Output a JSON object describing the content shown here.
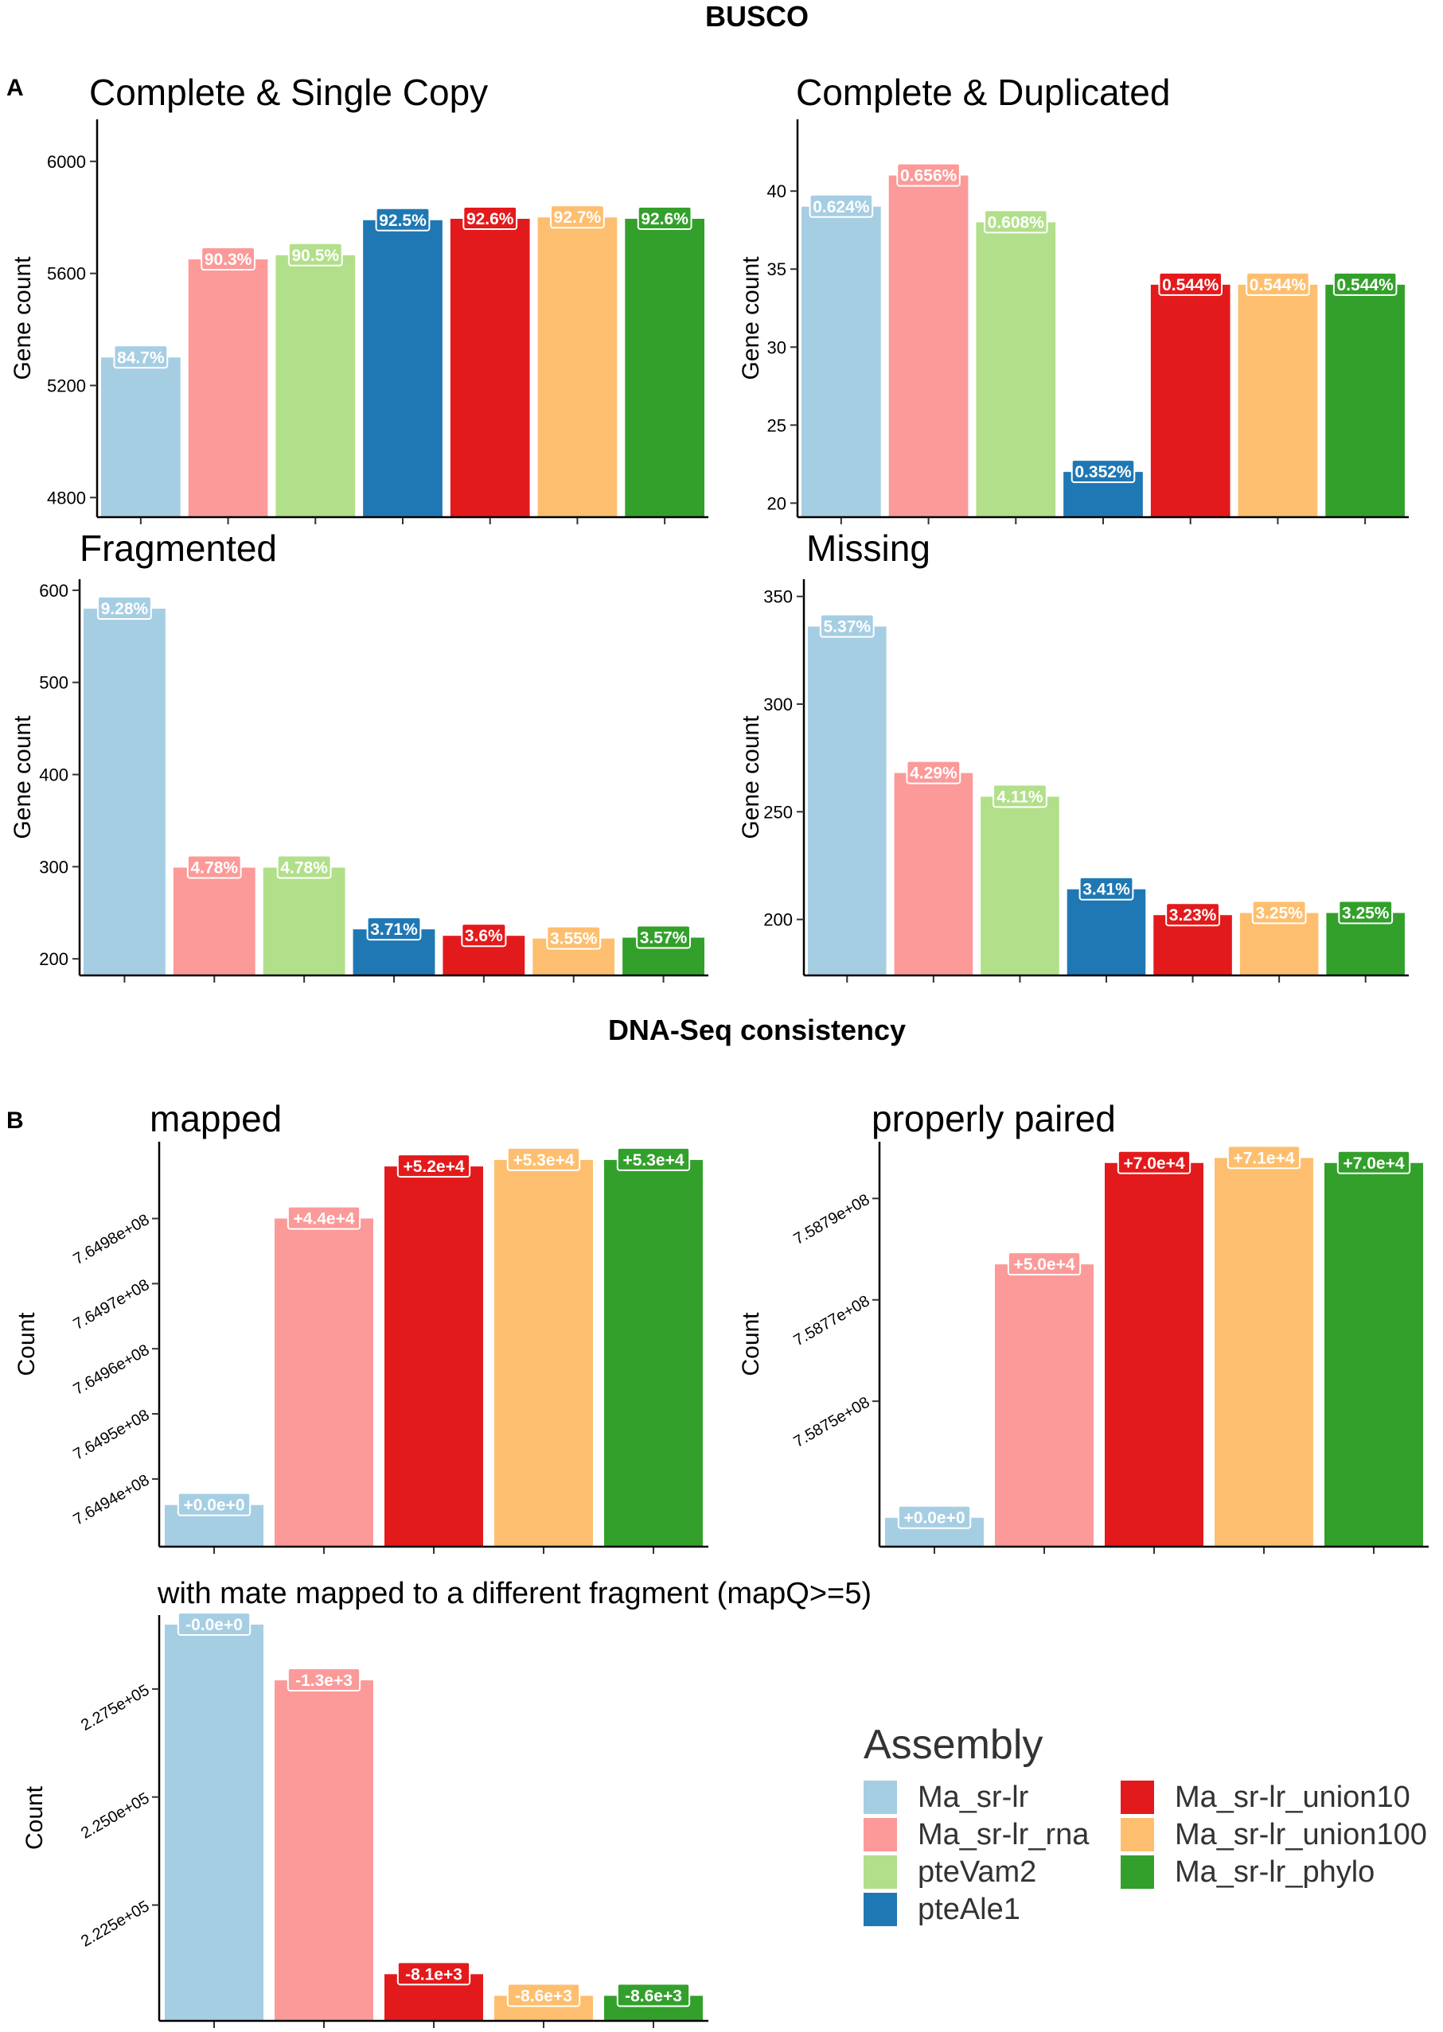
{
  "sections": {
    "busco_title": "BUSCO",
    "dna_title": "DNA-Seq consistency",
    "panel_a": "A",
    "panel_b": "B"
  },
  "assemblies": [
    "Ma_sr-lr",
    "Ma_sr-lr_rna",
    "pteVam2",
    "pteAle1",
    "Ma_sr-lr_union10",
    "Ma_sr-lr_union100",
    "Ma_sr-lr_phylo"
  ],
  "colors": {
    "Ma_sr-lr": "#a6cee3",
    "Ma_sr-lr_rna": "#fb9a99",
    "pteVam2": "#b2df8a",
    "pteAle1": "#1f78b4",
    "Ma_sr-lr_union10": "#e31a1c",
    "Ma_sr-lr_union100": "#fdbf6f",
    "Ma_sr-lr_phylo": "#33a02c"
  },
  "legend": {
    "title": "Assembly",
    "items": [
      "Ma_sr-lr",
      "Ma_sr-lr_rna",
      "pteVam2",
      "pteAle1",
      "Ma_sr-lr_union10",
      "Ma_sr-lr_union100",
      "Ma_sr-lr_phylo"
    ]
  },
  "chart_data": [
    {
      "id": "complete-single",
      "type": "bar",
      "title": "Complete & Single Copy",
      "ylabel": "Gene count",
      "categories": [
        "Ma_sr-lr",
        "Ma_sr-lr_rna",
        "pteVam2",
        "pteAle1",
        "Ma_sr-lr_union10",
        "Ma_sr-lr_union100",
        "Ma_sr-lr_phylo"
      ],
      "values": [
        5300,
        5650,
        5665,
        5790,
        5795,
        5800,
        5795
      ],
      "labels": [
        "84.7%",
        "90.3%",
        "90.5%",
        "92.5%",
        "92.6%",
        "92.7%",
        "92.6%"
      ],
      "ylim": [
        4730,
        6150
      ],
      "yticks": [
        4800,
        5200,
        5600,
        6000
      ],
      "ytick_labels": [
        "4800",
        "5200",
        "5600",
        "6000"
      ]
    },
    {
      "id": "complete-duplicated",
      "type": "bar",
      "title": "Complete & Duplicated",
      "ylabel": "Gene count",
      "categories": [
        "Ma_sr-lr",
        "Ma_sr-lr_rna",
        "pteVam2",
        "pteAle1",
        "Ma_sr-lr_union10",
        "Ma_sr-lr_union100",
        "Ma_sr-lr_phylo"
      ],
      "values": [
        39,
        41,
        38,
        22,
        34,
        34,
        34
      ],
      "labels": [
        "0.624%",
        "0.656%",
        "0.608%",
        "0.352%",
        "0.544%",
        "0.544%",
        "0.544%"
      ],
      "ylim": [
        19.1,
        44.6
      ],
      "yticks": [
        20,
        25,
        30,
        35,
        40
      ],
      "ytick_labels": [
        "20",
        "25",
        "30",
        "35",
        "40"
      ]
    },
    {
      "id": "fragmented",
      "type": "bar",
      "title": "Fragmented",
      "ylabel": "Gene count",
      "categories": [
        "Ma_sr-lr",
        "Ma_sr-lr_rna",
        "pteVam2",
        "pteAle1",
        "Ma_sr-lr_union10",
        "Ma_sr-lr_union100",
        "Ma_sr-lr_phylo"
      ],
      "values": [
        580,
        299,
        299,
        232,
        225,
        222,
        223
      ],
      "labels": [
        "9.28%",
        "4.78%",
        "4.78%",
        "3.71%",
        "3.6%",
        "3.55%",
        "3.57%"
      ],
      "ylim": [
        182,
        612
      ],
      "yticks": [
        200,
        300,
        400,
        500,
        600
      ],
      "ytick_labels": [
        "200",
        "300",
        "400",
        "500",
        "600"
      ]
    },
    {
      "id": "missing",
      "type": "bar",
      "title": "Missing",
      "ylabel": "Gene count",
      "categories": [
        "Ma_sr-lr",
        "Ma_sr-lr_rna",
        "pteVam2",
        "pteAle1",
        "Ma_sr-lr_union10",
        "Ma_sr-lr_union100",
        "Ma_sr-lr_phylo"
      ],
      "values": [
        336,
        268,
        257,
        214,
        202,
        203,
        203
      ],
      "labels": [
        "5.37%",
        "4.29%",
        "4.11%",
        "3.41%",
        "3.23%",
        "3.25%",
        "3.25%"
      ],
      "ylim": [
        174,
        358
      ],
      "yticks": [
        200,
        250,
        300,
        350
      ],
      "ytick_labels": [
        "200",
        "250",
        "300",
        "350"
      ]
    },
    {
      "id": "mapped",
      "type": "bar",
      "title": "mapped",
      "ylabel": "Count",
      "categories": [
        "Ma_sr-lr",
        "Ma_sr-lr_rna",
        "Ma_sr-lr_union10",
        "Ma_sr-lr_union100",
        "Ma_sr-lr_phylo"
      ],
      "values": [
        764936000,
        764980000,
        764988000,
        764989000,
        764989000
      ],
      "labels": [
        "+0.0e+0",
        "+4.4e+4",
        "+5.2e+4",
        "+5.3e+4",
        "+5.3e+4"
      ],
      "ylim": [
        764929600,
        764991800
      ],
      "yticks": [
        764940000,
        764950000,
        764960000,
        764970000,
        764980000
      ],
      "ytick_labels": [
        "7.6494e+08",
        "7.6495e+08",
        "7.6496e+08",
        "7.6497e+08",
        "7.6498e+08"
      ]
    },
    {
      "id": "properly-paired",
      "type": "bar",
      "title": "properly paired",
      "ylabel": "Count",
      "categories": [
        "Ma_sr-lr",
        "Ma_sr-lr_rna",
        "Ma_sr-lr_union10",
        "Ma_sr-lr_union100",
        "Ma_sr-lr_phylo"
      ],
      "values": [
        758727000,
        758777000,
        758797000,
        758798000,
        758797000
      ],
      "labels": [
        "+0.0e+0",
        "+5.0e+4",
        "+7.0e+4",
        "+7.1e+4",
        "+7.0e+4"
      ],
      "ylim": [
        758721300,
        758801200
      ],
      "yticks": [
        758750000,
        758770000,
        758790000
      ],
      "ytick_labels": [
        "7.5875e+08",
        "7.5877e+08",
        "7.5879e+08"
      ]
    },
    {
      "id": "mate-mapped",
      "type": "bar",
      "title": "with mate mapped to a different fragment (mapQ>=5)",
      "ylabel": "Count",
      "categories": [
        "Ma_sr-lr",
        "Ma_sr-lr_rna",
        "Ma_sr-lr_union10",
        "Ma_sr-lr_union100",
        "Ma_sr-lr_phylo"
      ],
      "values": [
        228990,
        227700,
        220900,
        220400,
        220400
      ],
      "labels": [
        "-0.0e+0",
        "-1.3e+3",
        "-8.1e+3",
        "-8.6e+3",
        "-8.6e+3"
      ],
      "ylim": [
        219820,
        229210
      ],
      "yticks": [
        222500,
        225000,
        227500
      ],
      "ytick_labels": [
        "2.225e+05",
        "2.250e+05",
        "2.275e+05"
      ]
    }
  ]
}
